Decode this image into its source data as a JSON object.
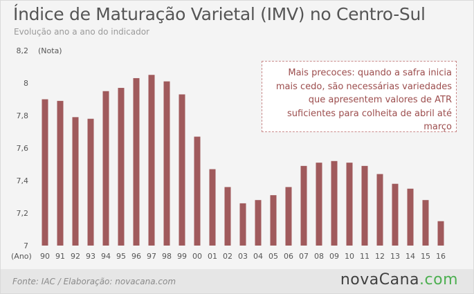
{
  "header": {
    "title": "Índice de Maturação Varietal (IMV) no Centro-Sul",
    "subtitle": "Evolução ano a ano do indicador"
  },
  "annotation": {
    "text": "Mais precoces: quando a safra inicia mais cedo, são necessárias variedades que apresentem valores de ATR suficientes para colheita de abril até março"
  },
  "footer": {
    "source": "Fonte: IAC / Elaboração: novacana.com",
    "logo_main": "novaCana",
    "logo_tld": ".com"
  },
  "colors": {
    "bar": "#a05a5c",
    "annotation_text": "#9c4d4d",
    "logo_dot": "#4caf50"
  },
  "chart_data": {
    "type": "bar",
    "title": "Índice de Maturação Varietal (IMV) no Centro-Sul",
    "subtitle": "Evolução ano a ano do indicador",
    "xlabel": "(Ano)",
    "ylabel": "(Nota)",
    "ylim": [
      7,
      8.2
    ],
    "yticks": [
      7,
      7.2,
      7.4,
      7.6,
      7.8,
      8,
      8.2
    ],
    "ytick_labels": [
      "7",
      "7,2",
      "7,4",
      "7,6",
      "7,8",
      "8",
      "8,2"
    ],
    "grid": false,
    "categories": [
      "90",
      "91",
      "92",
      "93",
      "94",
      "95",
      "96",
      "97",
      "98",
      "99",
      "00",
      "01",
      "02",
      "03",
      "04",
      "05",
      "06",
      "07",
      "08",
      "09",
      "10",
      "11",
      "12",
      "13",
      "14",
      "15",
      "16"
    ],
    "values": [
      7.9,
      7.89,
      7.79,
      7.78,
      7.95,
      7.97,
      8.03,
      8.05,
      8.01,
      7.93,
      7.67,
      7.47,
      7.36,
      7.26,
      7.28,
      7.31,
      7.36,
      7.49,
      7.51,
      7.52,
      7.51,
      7.49,
      7.44,
      7.38,
      7.35,
      7.28,
      7.15
    ]
  }
}
